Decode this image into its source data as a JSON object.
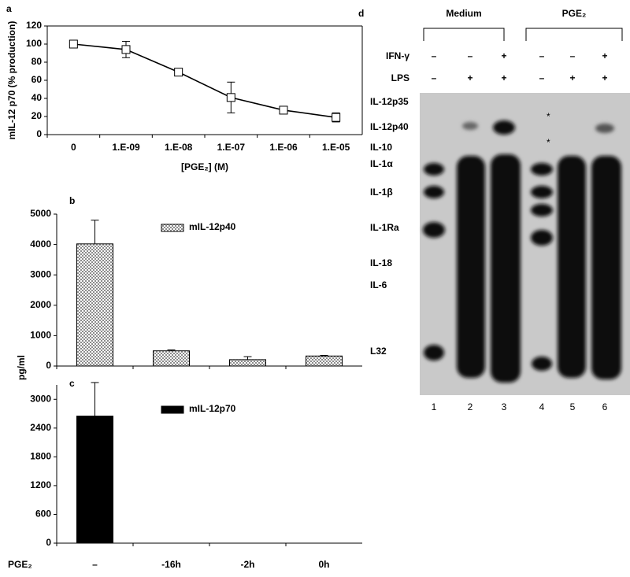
{
  "chart_data": [
    {
      "type": "line",
      "panel": "a",
      "ylabel": "mIL-12 p70 (% production)",
      "xlabel": "[PGE₂] (M)",
      "categories": [
        "0",
        "1.E-09",
        "1.E-08",
        "1.E-07",
        "1.E-06",
        "1.E-05"
      ],
      "values": [
        100,
        94,
        69,
        41,
        27,
        19
      ],
      "errors": [
        0,
        9,
        0,
        17,
        0,
        5
      ],
      "color": "#000000",
      "ylim": [
        0,
        120
      ],
      "yticks": [
        0,
        20,
        40,
        60,
        80,
        100,
        120
      ]
    },
    {
      "type": "bar",
      "panel": "b",
      "ylabel": "pg/ml",
      "categories": [
        null,
        null,
        null,
        null
      ],
      "series": [
        {
          "name": "mIL-12p40",
          "color": "#8c8c8c",
          "values": [
            4020,
            500,
            210,
            330
          ],
          "errors": [
            780,
            30,
            100,
            20
          ]
        }
      ],
      "ylim": [
        0,
        5000
      ],
      "yticks": [
        0,
        1000,
        2000,
        3000,
        4000,
        5000
      ],
      "legend": "upper right",
      "hatch": true
    },
    {
      "type": "bar",
      "panel": "c",
      "xlabel": "PGE₂",
      "categories": [
        "–",
        "-16h",
        "-2h",
        "0h"
      ],
      "series": [
        {
          "name": "mIL-12p70",
          "color": "#000000",
          "values": [
            2650,
            0,
            0,
            0
          ],
          "errors": [
            700,
            0,
            0,
            0
          ]
        }
      ],
      "ylim": [
        0,
        3300
      ],
      "yticks": [
        0,
        600,
        1200,
        1800,
        2400,
        3000
      ],
      "legend": "upper right",
      "hatch": false
    }
  ],
  "gel": {
    "panel": "d",
    "groups": [
      "Medium",
      "PGE₂"
    ],
    "rows": [
      {
        "label": "IFN-γ",
        "signs": [
          "–",
          "–",
          "+",
          "–",
          "–",
          "+"
        ]
      },
      {
        "label": "LPS",
        "signs": [
          "–",
          "+",
          "+",
          "–",
          "+",
          "+"
        ]
      }
    ],
    "bands": [
      "IL-12p35",
      "IL-12p40",
      "IL-10",
      "IL-1α",
      "IL-1β",
      "IL-1Ra",
      "IL-18",
      "IL-6",
      "L32"
    ],
    "lanes": [
      "1",
      "2",
      "3",
      "4",
      "5",
      "6"
    ],
    "marks": [
      "*",
      "*"
    ]
  }
}
